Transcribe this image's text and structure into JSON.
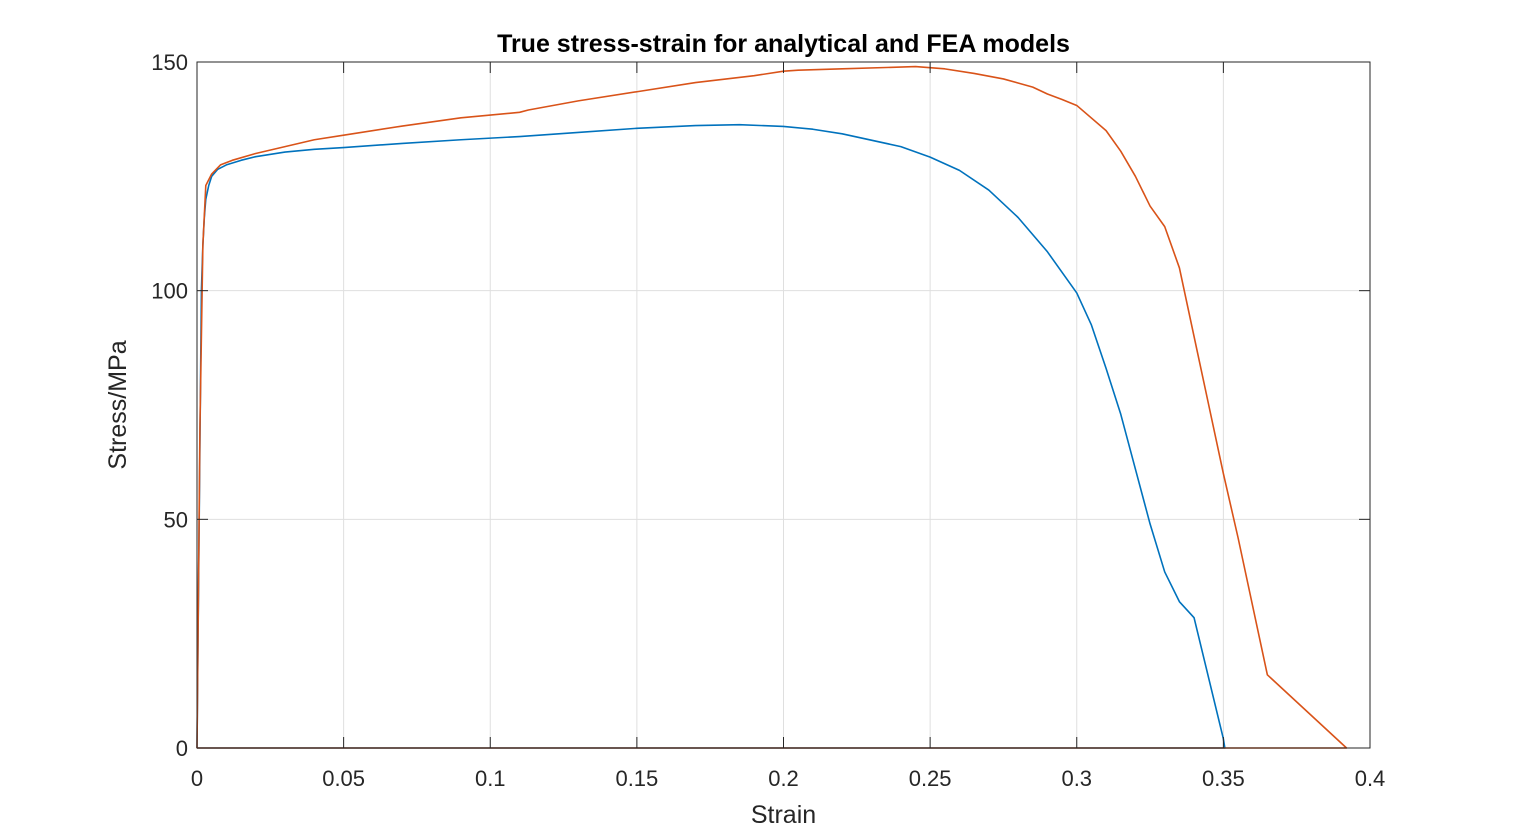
{
  "chart_data": {
    "type": "line",
    "title": "True stress-strain for analytical and FEA models",
    "xlabel": "Strain",
    "ylabel": "Stress/MPa",
    "xlim": [
      0,
      0.4
    ],
    "ylim": [
      0,
      150
    ],
    "xticks": [
      0,
      0.05,
      0.1,
      0.15,
      0.2,
      0.25,
      0.3,
      0.35,
      0.4
    ],
    "xtick_labels": [
      "0",
      "0.05",
      "0.1",
      "0.15",
      "0.2",
      "0.25",
      "0.3",
      "0.35",
      "0.4"
    ],
    "yticks": [
      0,
      50,
      100,
      150
    ],
    "ytick_labels": [
      "0",
      "50",
      "100",
      "150"
    ],
    "grid": true,
    "series": [
      {
        "color": "#0072BD",
        "x": [
          0,
          0.0015,
          0.002,
          0.0025,
          0.003,
          0.004,
          0.005,
          0.007,
          0.01,
          0.015,
          0.02,
          0.03,
          0.04,
          0.05,
          0.07,
          0.09,
          0.11,
          0.13,
          0.15,
          0.17,
          0.185,
          0.2,
          0.21,
          0.22,
          0.24,
          0.25,
          0.26,
          0.27,
          0.28,
          0.29,
          0.3,
          0.305,
          0.31,
          0.315,
          0.32,
          0.325,
          0.33,
          0.335,
          0.34,
          0.35,
          0.3505,
          0.35,
          0.3,
          0.2,
          0.1,
          0.0
        ],
        "y": [
          0,
          100,
          110,
          116,
          120,
          123,
          125,
          126.5,
          127.5,
          128.5,
          129.3,
          130.3,
          130.9,
          131.3,
          132.2,
          133,
          133.7,
          134.6,
          135.5,
          136.1,
          136.3,
          135.9,
          135.3,
          134.3,
          131.5,
          129.2,
          126.3,
          122,
          116,
          108.5,
          99.5,
          92.5,
          83,
          73,
          61,
          49,
          38.5,
          32,
          28.5,
          2,
          0,
          0,
          0,
          0,
          0,
          0
        ]
      },
      {
        "color": "#D95319",
        "x": [
          0,
          0.001,
          0.002,
          0.003,
          0.005,
          0.008,
          0.012,
          0.02,
          0.03,
          0.04,
          0.05,
          0.07,
          0.09,
          0.11,
          0.113,
          0.13,
          0.15,
          0.17,
          0.19,
          0.2,
          0.205,
          0.22,
          0.235,
          0.245,
          0.255,
          0.265,
          0.275,
          0.285,
          0.29,
          0.295,
          0.3,
          0.31,
          0.315,
          0.32,
          0.325,
          0.33,
          0.335,
          0.34,
          0.345,
          0.35,
          0.355,
          0.365,
          0.392,
          0.35,
          0.3,
          0.2,
          0.1,
          0.0
        ],
        "y": [
          0,
          70,
          110,
          123,
          125.5,
          127.5,
          128.5,
          130,
          131.5,
          133,
          134,
          136,
          137.8,
          139,
          139.5,
          141.5,
          143.5,
          145.5,
          147,
          148,
          148.2,
          148.5,
          148.8,
          149,
          148.5,
          147.5,
          146.3,
          144.5,
          143,
          141.8,
          140.5,
          135,
          130.5,
          125,
          118.5,
          114,
          105,
          90,
          75,
          60,
          46,
          16,
          0,
          0,
          0,
          0,
          0,
          0
        ]
      }
    ]
  }
}
